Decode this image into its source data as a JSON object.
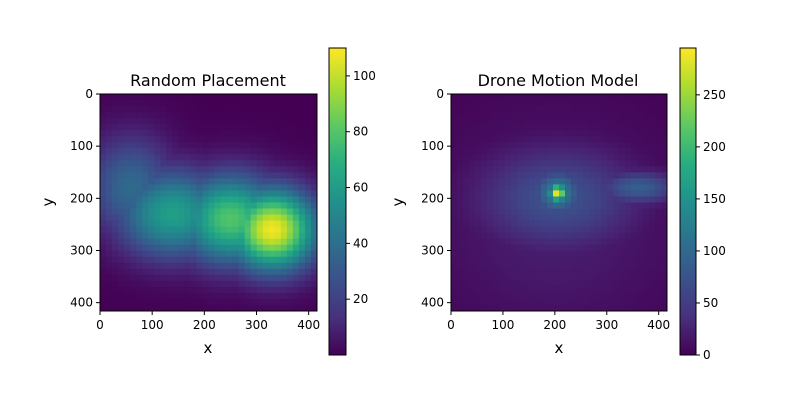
{
  "chart_data": [
    {
      "type": "heatmap",
      "title": "Random Placement",
      "xlabel": "x",
      "ylabel": "y",
      "x_range": [
        0,
        416
      ],
      "y_range": [
        0,
        416
      ],
      "y_inverted": true,
      "xticks": [
        0,
        100,
        200,
        300,
        400
      ],
      "yticks": [
        0,
        100,
        200,
        300,
        400
      ],
      "colormap": "viridis",
      "colorbar": {
        "min": 0,
        "max": 110,
        "ticks": [
          20,
          40,
          60,
          80,
          100
        ]
      },
      "hotspots": [
        {
          "x": 330,
          "y": 260,
          "value": 108,
          "sx": 60,
          "sy": 55
        },
        {
          "x": 250,
          "y": 240,
          "value": 80,
          "sx": 70,
          "sy": 60
        },
        {
          "x": 140,
          "y": 230,
          "value": 62,
          "sx": 75,
          "sy": 60
        },
        {
          "x": 60,
          "y": 180,
          "value": 38,
          "sx": 60,
          "sy": 70
        }
      ]
    },
    {
      "type": "heatmap",
      "title": "Drone Motion Model",
      "xlabel": "x",
      "ylabel": "y",
      "x_range": [
        0,
        416
      ],
      "y_range": [
        0,
        416
      ],
      "y_inverted": true,
      "xticks": [
        0,
        100,
        200,
        300,
        400
      ],
      "yticks": [
        0,
        100,
        200,
        300,
        400
      ],
      "colormap": "viridis",
      "colorbar": {
        "min": 0,
        "max": 295,
        "ticks": [
          0,
          50,
          100,
          150,
          200,
          250
        ]
      },
      "hotspots": [
        {
          "x": 205,
          "y": 190,
          "value": 290,
          "sx": 12,
          "sy": 12
        },
        {
          "x": 205,
          "y": 190,
          "value": 130,
          "sx": 35,
          "sy": 32
        },
        {
          "x": 205,
          "y": 200,
          "value": 75,
          "sx": 110,
          "sy": 70
        },
        {
          "x": 360,
          "y": 180,
          "value": 90,
          "sx": 55,
          "sy": 22
        },
        {
          "x": 200,
          "y": 250,
          "value": 25,
          "sx": 170,
          "sy": 150
        }
      ]
    }
  ]
}
